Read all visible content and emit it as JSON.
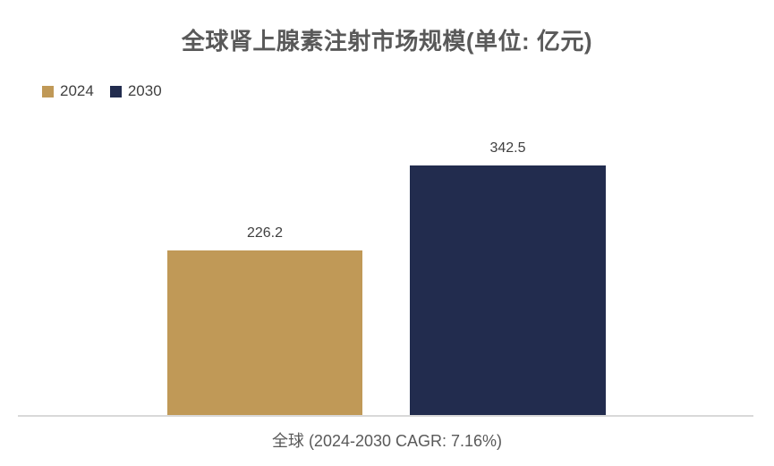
{
  "title": "全球肾上腺素注射市场规模(单位: 亿元)",
  "chart_data": {
    "type": "bar",
    "title": "全球肾上腺素注射市场规模(单位: 亿元)",
    "categories": [
      "全球 (2024-2030 CAGR: 7.16%)"
    ],
    "series": [
      {
        "name": "2024",
        "values": [
          226.2
        ],
        "color": "#C09957"
      },
      {
        "name": "2030",
        "values": [
          342.5
        ],
        "color": "#222C4E"
      }
    ],
    "xlabel": "",
    "ylabel": "",
    "ylim": [
      0,
      375
    ],
    "grid": false,
    "legend_position": "top-left",
    "data_labels": true,
    "baseline_color": "#D9D9D9"
  },
  "colors": {
    "title_text": "#595959",
    "value_text": "#404040",
    "legend_text": "#404040",
    "category_text": "#595959",
    "axis_line": "#D9D9D9",
    "background": "#FFFFFF"
  }
}
